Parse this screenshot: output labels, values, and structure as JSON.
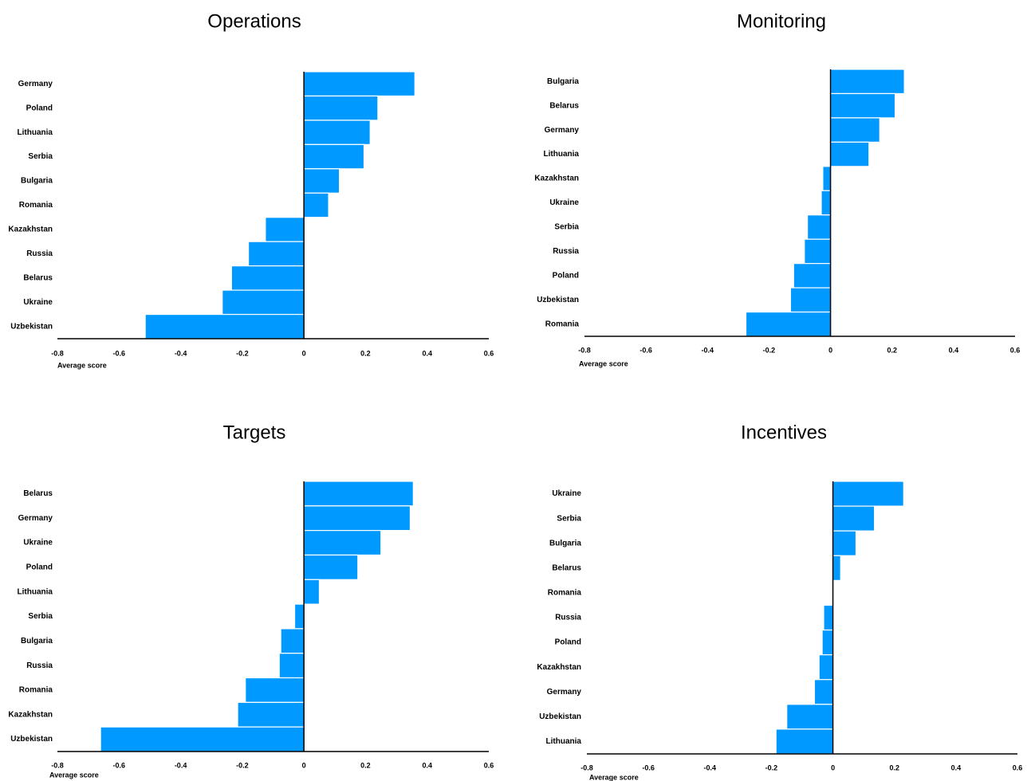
{
  "style": {
    "bar_color": "#0099FF",
    "axis_color": "#000000",
    "bar_gap_color": "#FFFFFF"
  },
  "chart_data": [
    {
      "type": "bar",
      "orientation": "horizontal",
      "title": "Operations",
      "xlabel": "Average score",
      "xlim": [
        -0.8,
        0.6
      ],
      "xticks": [
        "-0.8",
        "-0.6",
        "-0.4",
        "-0.2",
        "0",
        "0.2",
        "0.4",
        "0.6"
      ],
      "categories": [
        "Germany",
        "Poland",
        "Lithuania",
        "Serbia",
        "Bulgaria",
        "Romania",
        "Kazakhstan",
        "Russia",
        "Belarus",
        "Ukraine",
        "Uzbekistan"
      ],
      "values": [
        0.36,
        0.24,
        0.215,
        0.195,
        0.115,
        0.08,
        -0.125,
        -0.18,
        -0.235,
        -0.265,
        -0.515
      ]
    },
    {
      "type": "bar",
      "orientation": "horizontal",
      "title": "Monitoring",
      "xlabel": "Average score",
      "xlim": [
        -0.8,
        0.6
      ],
      "xticks": [
        "-0.8",
        "-0.6",
        "-0.4",
        "-0.2",
        "0",
        "0.2",
        "0.4",
        "0.6"
      ],
      "categories": [
        "Bulgaria",
        "Belarus",
        "Germany",
        "Lithuania",
        "Kazakhstan",
        "Ukraine",
        "Serbia",
        "Russia",
        "Poland",
        "Uzbekistan",
        "Romania"
      ],
      "values": [
        0.24,
        0.21,
        0.16,
        0.125,
        -0.025,
        -0.03,
        -0.075,
        -0.085,
        -0.12,
        -0.13,
        -0.275
      ]
    },
    {
      "type": "bar",
      "orientation": "horizontal",
      "title": "Targets",
      "xlabel": "Average score",
      "xlim": [
        -0.8,
        0.6
      ],
      "xticks": [
        "-0.8",
        "-0.6",
        "-0.4",
        "-0.2",
        "0",
        "0.2",
        "0.4",
        "0.6"
      ],
      "categories": [
        "Belarus",
        "Germany",
        "Ukraine",
        "Poland",
        "Lithuania",
        "Serbia",
        "Bulgaria",
        "Russia",
        "Romania",
        "Kazakhstan",
        "Uzbekistan"
      ],
      "values": [
        0.355,
        0.345,
        0.25,
        0.175,
        0.05,
        -0.03,
        -0.075,
        -0.08,
        -0.19,
        -0.215,
        -0.66
      ]
    },
    {
      "type": "bar",
      "orientation": "horizontal",
      "title": "Incentives",
      "xlabel": "Average score",
      "xlim": [
        -0.8,
        0.6
      ],
      "xticks": [
        "-0.8",
        "-0.6",
        "-0.4",
        "-0.2",
        "0",
        "0.2",
        "0.4",
        "0.6"
      ],
      "categories": [
        "Ukraine",
        "Serbia",
        "Bulgaria",
        "Belarus",
        "Romania",
        "Russia",
        "Poland",
        "Kazakhstan",
        "Germany",
        "Uzbekistan",
        "Lithuania"
      ],
      "values": [
        0.23,
        0.135,
        0.075,
        0.025,
        0.0,
        -0.03,
        -0.035,
        -0.045,
        -0.06,
        -0.15,
        -0.185
      ]
    }
  ]
}
